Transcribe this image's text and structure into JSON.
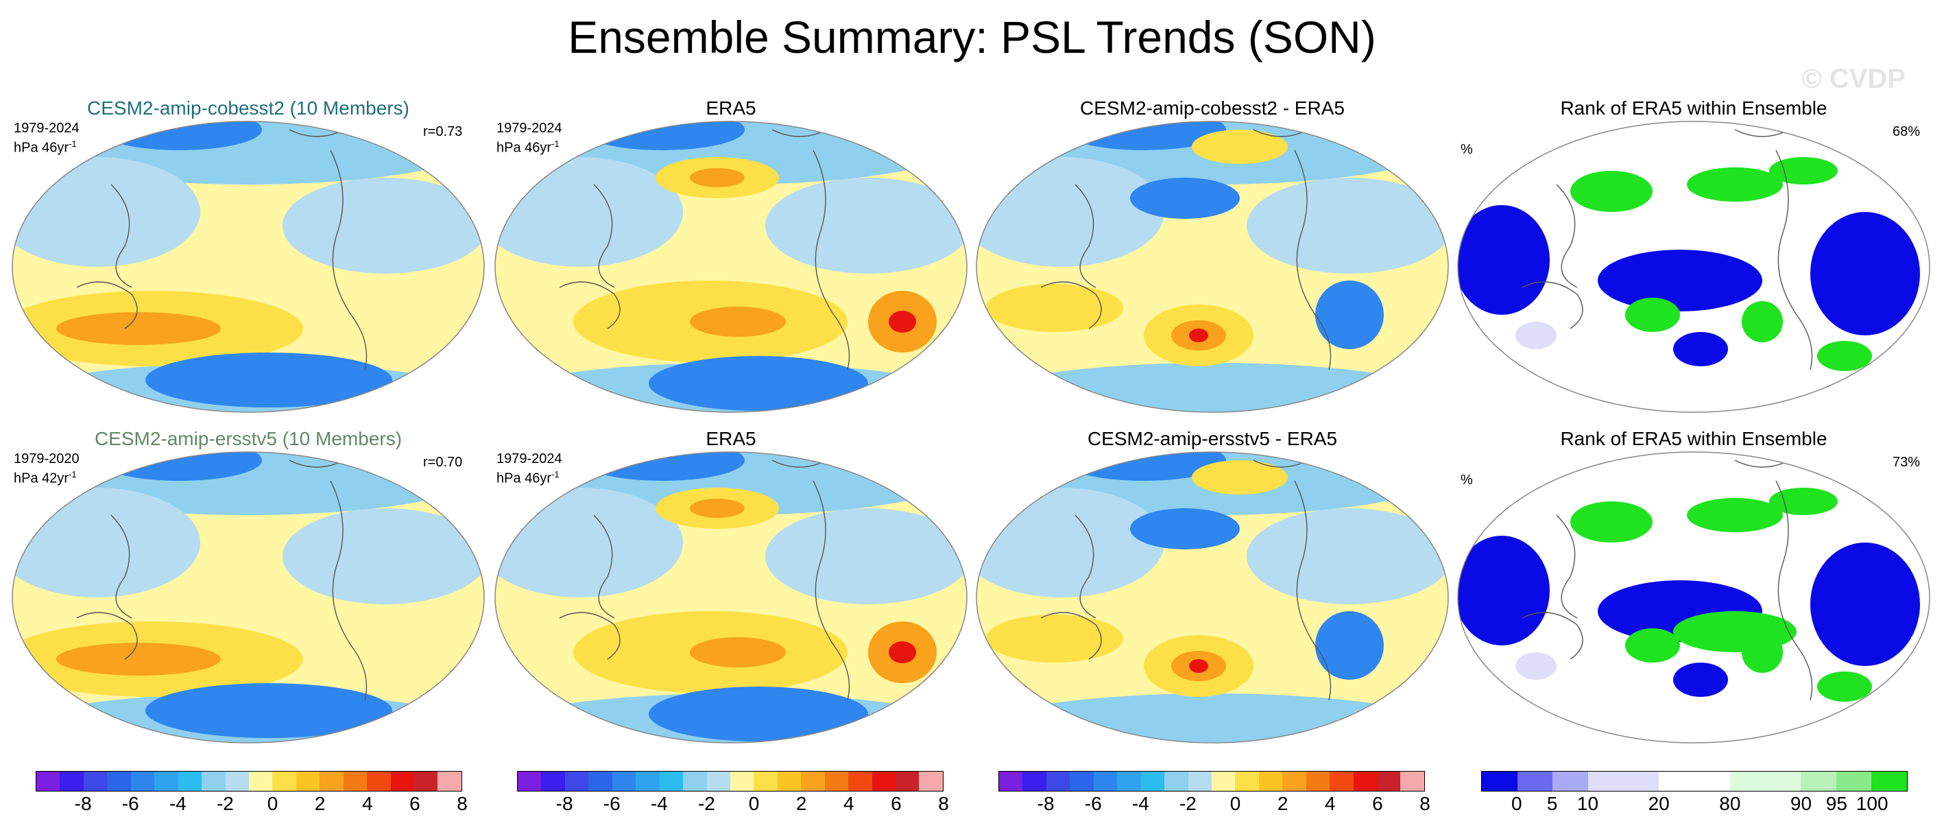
{
  "title": "Ensemble Summary: PSL Trends (SON)",
  "watermark": "© CVDP",
  "rows": [
    {
      "model": {
        "title": "CESM2-amip-cobesst2 (10 Members)",
        "title_color": "#1f6e7e",
        "period": "1979-2024",
        "units": "hPa 46yr",
        "units_sup": "-1",
        "corr": "r=0.73"
      },
      "obs": {
        "title": "ERA5",
        "period": "1979-2024",
        "units": "hPa 46yr",
        "units_sup": "-1"
      },
      "diff": {
        "title": "CESM2-amip-cobesst2 - ERA5"
      },
      "rank": {
        "title": "Rank of ERA5 within Ensemble",
        "unit": "%",
        "pct": "68%"
      }
    },
    {
      "model": {
        "title": "CESM2-amip-ersstv5 (10 Members)",
        "title_color": "#5f8a64",
        "period": "1979-2020",
        "units": "hPa 42yr",
        "units_sup": "-1",
        "corr": "r=0.70"
      },
      "obs": {
        "title": "ERA5",
        "period": "1979-2024",
        "units": "hPa 46yr",
        "units_sup": "-1"
      },
      "diff": {
        "title": "CESM2-amip-ersstv5 - ERA5"
      },
      "rank": {
        "title": "Rank of ERA5 within Ensemble",
        "unit": "%",
        "pct": "73%"
      }
    }
  ],
  "colorbars": {
    "trend": {
      "colors": [
        "#7b1fe0",
        "#3a1fee",
        "#3e48e4",
        "#2b66ea",
        "#2f86ee",
        "#2ea4ee",
        "#2bbcf0",
        "#8fd0ee",
        "#b5dcf0",
        "#fff7a3",
        "#fde047",
        "#fac423",
        "#f8a21d",
        "#f47a14",
        "#f24a0e",
        "#e8140e",
        "#c8232b",
        "#f5a9a9"
      ],
      "ticks": [
        "-8",
        "-6",
        "-4",
        "-2",
        "0",
        "2",
        "4",
        "6",
        "8"
      ]
    },
    "rank": {
      "colors": [
        "#0a0ae6",
        "#6a6af0",
        "#aaaaf4",
        "#dedefa",
        "#dedefa",
        "#ffffff",
        "#ffffff",
        "#dcfadc",
        "#dcfadc",
        "#b8f2b8",
        "#88ea88",
        "#1ee31e"
      ],
      "ticks": [
        "0",
        "5",
        "10",
        "20",
        "80",
        "90",
        "95",
        "100"
      ]
    }
  },
  "field_colors": {
    "neg2": "#2f86ee",
    "neg1": "#8fd0ee",
    "pale_blue": "#b5dcf0",
    "yellow": "#fff7a3",
    "gold": "#fde047",
    "orange": "#f8a21d",
    "red": "#e8140e",
    "rank_blue": "#0a0ae6",
    "rank_green": "#1ee31e"
  }
}
